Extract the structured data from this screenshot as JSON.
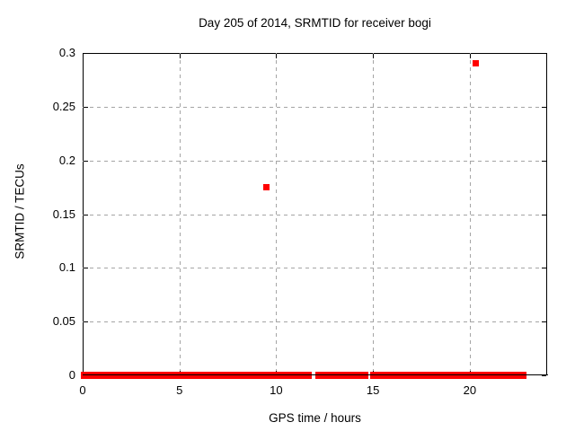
{
  "chart_data": {
    "type": "scatter",
    "title": "Day 205 of 2014, SRMTID for receiver bogi",
    "xlabel": "GPS time / hours",
    "ylabel": "SRMTID / TECUs",
    "xlim": [
      0,
      24
    ],
    "ylim": [
      0,
      0.3
    ],
    "xticks": [
      0,
      5,
      10,
      15,
      20
    ],
    "xtick_labels": [
      "0",
      "5",
      "10",
      "15",
      "20"
    ],
    "yticks": [
      0,
      0.05,
      0.1,
      0.15,
      0.2,
      0.25,
      0.3
    ],
    "ytick_labels": [
      "0",
      "0.05",
      "0.1",
      "0.15",
      "0.2",
      "0.25",
      "0.3"
    ],
    "grid": true,
    "grid_style": "dashed",
    "legend_position": "none",
    "marker": "plus",
    "series": [
      {
        "name": "SRMTID",
        "color": "#ff0000",
        "outlier_points": [
          [
            9.5,
            0.175
          ],
          [
            20.3,
            0.29
          ]
        ],
        "zero_value_segments": [
          [
            0.0,
            0.74
          ],
          [
            0.82,
            1.25
          ],
          [
            1.45,
            1.67
          ],
          [
            1.74,
            1.93
          ],
          [
            2.01,
            2.67
          ],
          [
            2.73,
            3.16
          ],
          [
            3.29,
            3.9
          ],
          [
            4.0,
            4.46
          ],
          [
            4.57,
            5.38
          ],
          [
            5.49,
            5.91
          ],
          [
            6.0,
            6.42
          ],
          [
            6.5,
            7.0
          ],
          [
            7.07,
            8.01
          ],
          [
            8.1,
            8.29
          ],
          [
            8.38,
            8.53
          ],
          [
            8.63,
            9.0
          ],
          [
            9.12,
            9.55
          ],
          [
            9.65,
            10.66
          ],
          [
            10.79,
            11.25
          ],
          [
            11.4,
            11.54
          ],
          [
            11.63,
            11.74
          ],
          [
            12.13,
            12.21
          ],
          [
            12.39,
            12.48
          ],
          [
            12.56,
            12.67
          ],
          [
            12.75,
            13.13
          ],
          [
            13.25,
            13.62
          ],
          [
            13.72,
            13.98
          ],
          [
            14.09,
            14.44
          ],
          [
            14.6,
            14.68
          ],
          [
            14.95,
            15.48
          ],
          [
            15.63,
            15.99
          ],
          [
            16.1,
            16.53
          ],
          [
            16.6,
            16.73
          ],
          [
            16.84,
            17.2
          ],
          [
            17.27,
            17.42
          ],
          [
            17.5,
            17.61
          ],
          [
            17.67,
            17.98
          ],
          [
            18.04,
            18.13
          ],
          [
            18.25,
            18.41
          ],
          [
            18.56,
            19.03
          ],
          [
            19.12,
            19.54
          ],
          [
            19.64,
            19.7
          ],
          [
            19.89,
            20.05
          ],
          [
            20.08,
            20.54
          ],
          [
            20.65,
            20.89
          ],
          [
            20.97,
            21.06
          ],
          [
            21.13,
            21.3
          ],
          [
            21.37,
            21.44
          ],
          [
            21.5,
            21.93
          ],
          [
            21.98,
            22.36
          ],
          [
            22.55,
            22.64
          ],
          [
            22.7,
            22.86
          ]
        ]
      }
    ]
  },
  "colors": {
    "background": "#ffffff",
    "text": "#000000",
    "border": "#000000",
    "grid": "#a5a5a5",
    "marker": "#ff0000"
  }
}
